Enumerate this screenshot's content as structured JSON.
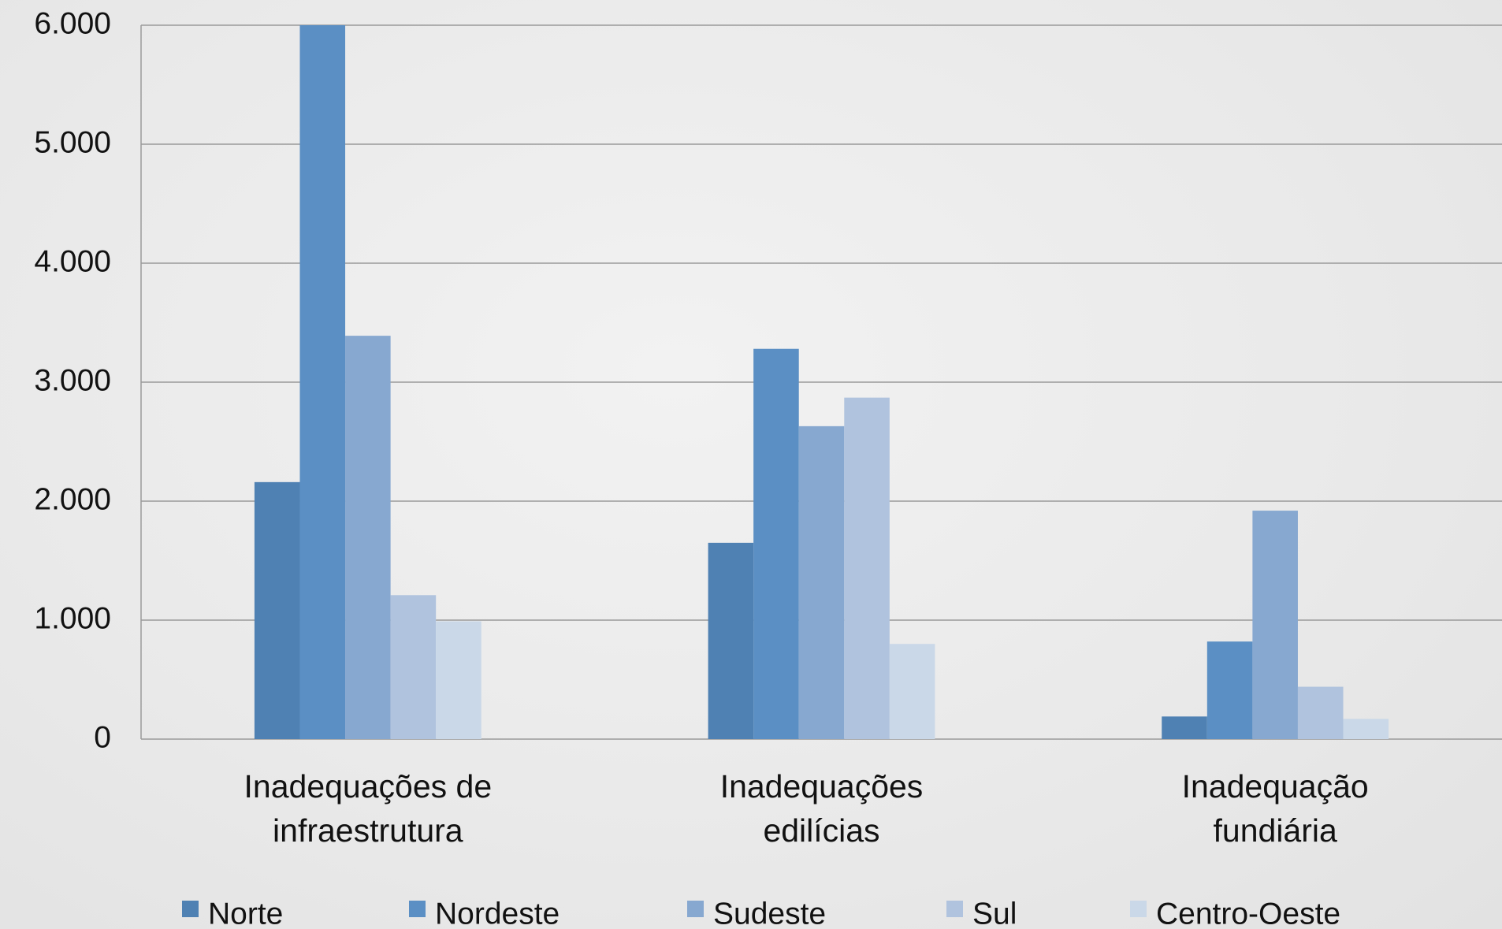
{
  "chart_data": {
    "type": "bar",
    "categories": [
      "Inadequações de infraestrutura",
      "Inadequações edilícias",
      "Inadequação fundiária"
    ],
    "series": [
      {
        "name": "Norte",
        "color": "#4f81b3",
        "values": [
          2160,
          1650,
          190
        ]
      },
      {
        "name": "Nordeste",
        "color": "#5b8fc4",
        "values": [
          6000,
          3280,
          820
        ]
      },
      {
        "name": "Sudeste",
        "color": "#87a8d0",
        "values": [
          3390,
          2630,
          1920
        ]
      },
      {
        "name": "Sul",
        "color": "#b0c3de",
        "values": [
          1210,
          2870,
          440
        ]
      },
      {
        "name": "Centro-Oeste",
        "color": "#cad8e8",
        "values": [
          990,
          800,
          170
        ]
      }
    ],
    "ylim": [
      0,
      6000
    ],
    "yticks": [
      0,
      {
        "value": 1000,
        "label": "1.000"
      },
      {
        "value": 2000,
        "label": "2.000"
      },
      {
        "value": 3000,
        "label": "3.000"
      },
      {
        "value": 4000,
        "label": "4.000"
      },
      {
        "value": 5000,
        "label": "5.000"
      },
      {
        "value": 6000,
        "label": "6.000"
      }
    ],
    "grid": true,
    "legend": "bottom"
  }
}
